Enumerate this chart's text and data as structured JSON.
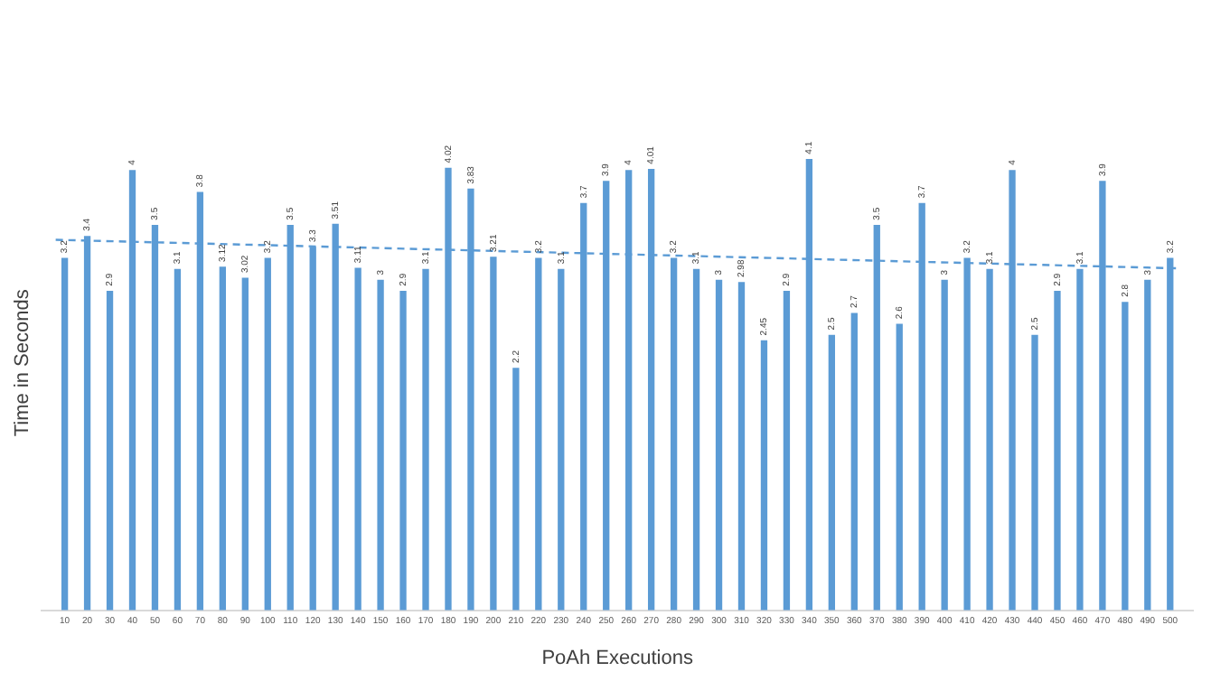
{
  "chart_data": {
    "type": "bar",
    "xlabel": "PoAh Executions",
    "ylabel": "Time in Seconds",
    "x": [
      10,
      20,
      30,
      40,
      50,
      60,
      70,
      80,
      90,
      100,
      110,
      120,
      130,
      140,
      150,
      160,
      170,
      180,
      190,
      200,
      210,
      220,
      230,
      240,
      250,
      260,
      270,
      280,
      290,
      300,
      310,
      320,
      330,
      340,
      350,
      360,
      370,
      380,
      390,
      400,
      410,
      420,
      430,
      440,
      450,
      460,
      470,
      480,
      490,
      500
    ],
    "xlim": [
      5,
      505
    ],
    "xticks": [
      10,
      20,
      30,
      40,
      50,
      60,
      70,
      80,
      90,
      100,
      110,
      120,
      130,
      140,
      150,
      160,
      170,
      180,
      190,
      200,
      210,
      220,
      230,
      240,
      250,
      260,
      270,
      280,
      290,
      300,
      310,
      320,
      330,
      340,
      350,
      360,
      370,
      380,
      390,
      400,
      410,
      420,
      430,
      440,
      450,
      460,
      470,
      480,
      490,
      500
    ],
    "series": [
      {
        "color": "#5b9bd5",
        "values": [
          3.2,
          3.4,
          2.9,
          4,
          3.5,
          3.1,
          3.8,
          3.12,
          3.02,
          3.2,
          3.5,
          3.3,
          3.51,
          3.11,
          3,
          2.9,
          3.1,
          4.02,
          3.83,
          3.21,
          2.2,
          3.2,
          3.1,
          3.7,
          3.9,
          4,
          4.01,
          3.2,
          3.1,
          3,
          2.98,
          2.45,
          2.9,
          4.1,
          2.5,
          2.7,
          3.5,
          2.6,
          3.7,
          3,
          3.2,
          3.1,
          4,
          2.5,
          2.9,
          3.1,
          3.9,
          2.8,
          3,
          3.2
        ],
        "value_labels": [
          "3.2",
          "3.4",
          "2.9",
          "4",
          "3.5",
          "3.1",
          "3.8",
          "3.12",
          "3.02",
          "3.2",
          "3.5",
          "3.3",
          "3.51",
          "3.11",
          "3",
          "2.9",
          "3.1",
          "4.02",
          "3.83",
          "3.21",
          "2.2",
          "3.2",
          "3.1",
          "3.7",
          "3.9",
          "4",
          "4.01",
          "3.2",
          "3.1",
          "3",
          "2.98",
          "2.45",
          "2.9",
          "4.1",
          "2.5",
          "2.7",
          "3.5",
          "2.6",
          "3.7",
          "3",
          "3.2",
          "3.1",
          "4",
          "2.5",
          "2.9",
          "3.1",
          "3.9",
          "2.8",
          "3",
          "3.2"
        ]
      },
      {
        "type": "line",
        "color": "#5b9bd5",
        "line_style": "dashed",
        "marker": "none",
        "x": [
          6,
          504
        ],
        "values": [
          3.37,
          3.11
        ]
      }
    ],
    "grid": false,
    "legend": false,
    "tick_labels": "x"
  }
}
